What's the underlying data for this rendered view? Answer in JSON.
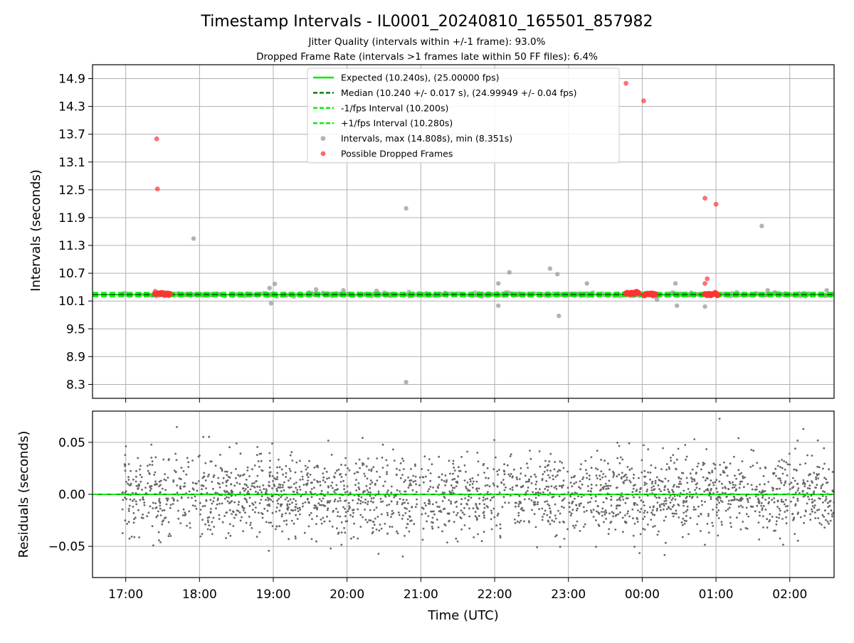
{
  "chart_data": {
    "title": "Timestamp Intervals - IL0001_20240810_165501_857982",
    "subtitle_lines": [
      "Jitter Quality (intervals within +/-1 frame): 93.0%",
      "Dropped Frame Rate (intervals >1 frames late within 50 FF files): 6.4%"
    ],
    "xlabel": "Time (UTC)",
    "x_tick_labels": [
      "17:00",
      "18:00",
      "19:00",
      "20:00",
      "21:00",
      "22:00",
      "23:00",
      "00:00",
      "01:00",
      "02:00"
    ],
    "x_tick_hours": [
      17,
      18,
      19,
      20,
      21,
      22,
      23,
      24,
      25,
      26
    ],
    "xlim_hours": [
      16.55,
      26.6
    ],
    "grid": true,
    "panels": [
      {
        "id": "intervals",
        "type": "scatter",
        "ylabel": "Intervals (seconds)",
        "ylim": [
          8.0,
          15.2
        ],
        "y_ticks": [
          8.3,
          8.9,
          9.5,
          10.1,
          10.7,
          11.3,
          11.9,
          12.5,
          13.1,
          13.7,
          14.3,
          14.9
        ],
        "y_tick_labels": [
          "8.3",
          "8.9",
          "9.5",
          "10.1",
          "10.7",
          "11.3",
          "11.9",
          "12.5",
          "13.1",
          "13.7",
          "14.3",
          "14.9"
        ],
        "reference_lines": [
          {
            "value": 10.24,
            "label": "Expected (10.240s), (25.00000 fps)",
            "color": "#00ee00",
            "style": "solid"
          },
          {
            "value": 10.24,
            "label": "Median (10.240 +/- 0.017 s), (24.99949 +/- 0.04 fps)",
            "color": "#007700",
            "style": "dashed"
          },
          {
            "value": 10.2,
            "label": "-1/fps Interval (10.200s)",
            "color": "#00ee00",
            "style": "dashed"
          },
          {
            "value": 10.28,
            "label": "+1/fps Interval (10.280s)",
            "color": "#00ee00",
            "style": "dashed"
          }
        ],
        "series": [
          {
            "name": "Intervals, max (14.808s), min (8.351s)",
            "color": "#999999",
            "baseline": {
              "value": 10.24,
              "x_range": [
                16.95,
                26.6
              ]
            },
            "points": [
              [
                17.92,
                11.45
              ],
              [
                18.95,
                10.38
              ],
              [
                18.97,
                10.05
              ],
              [
                19.02,
                10.47
              ],
              [
                19.58,
                10.35
              ],
              [
                19.95,
                10.33
              ],
              [
                20.4,
                10.32
              ],
              [
                20.8,
                12.1
              ],
              [
                20.8,
                8.35
              ],
              [
                22.05,
                10.48
              ],
              [
                22.05,
                10.0
              ],
              [
                22.2,
                10.72
              ],
              [
                22.75,
                10.8
              ],
              [
                22.85,
                10.68
              ],
              [
                22.87,
                9.78
              ],
              [
                23.25,
                10.48
              ],
              [
                24.2,
                10.13
              ],
              [
                24.45,
                10.48
              ],
              [
                24.47,
                10.0
              ],
              [
                24.85,
                9.98
              ],
              [
                25.62,
                11.72
              ],
              [
                25.7,
                10.33
              ],
              [
                26.5,
                10.33
              ]
            ]
          },
          {
            "name": "Possible Dropped Frames",
            "color": "#ff3333",
            "clusters": [
              {
                "x_range": [
                  17.4,
                  17.6
                ],
                "value": 10.26,
                "count": 15
              },
              {
                "x_range": [
                  23.78,
                  23.95
                ],
                "value": 10.27,
                "count": 14
              },
              {
                "x_range": [
                  24.03,
                  24.18
                ],
                "value": 10.25,
                "count": 12
              },
              {
                "x_range": [
                  24.85,
                  25.02
                ],
                "value": 10.24,
                "count": 12
              }
            ],
            "points": [
              [
                17.42,
                13.6
              ],
              [
                17.43,
                12.52
              ],
              [
                17.4,
                10.31
              ],
              [
                23.78,
                14.8
              ],
              [
                24.02,
                14.42
              ],
              [
                24.85,
                12.32
              ],
              [
                25.0,
                12.19
              ],
              [
                24.88,
                10.58
              ],
              [
                24.85,
                10.48
              ]
            ]
          }
        ]
      },
      {
        "id": "residuals",
        "type": "scatter",
        "ylabel": "Residuals (seconds)",
        "ylim": [
          -0.08,
          0.08
        ],
        "y_ticks": [
          -0.05,
          0.0,
          0.05
        ],
        "y_tick_labels": [
          "−0.05",
          "0.00",
          "0.05"
        ],
        "reference_line": {
          "value": 0.0,
          "color": "#00aa00"
        },
        "series": [
          {
            "name": "Residuals",
            "color": "#666666",
            "x_range": [
              16.95,
              26.6
            ],
            "spread_sd": 0.019,
            "max_abs": 0.078
          }
        ]
      }
    ]
  }
}
